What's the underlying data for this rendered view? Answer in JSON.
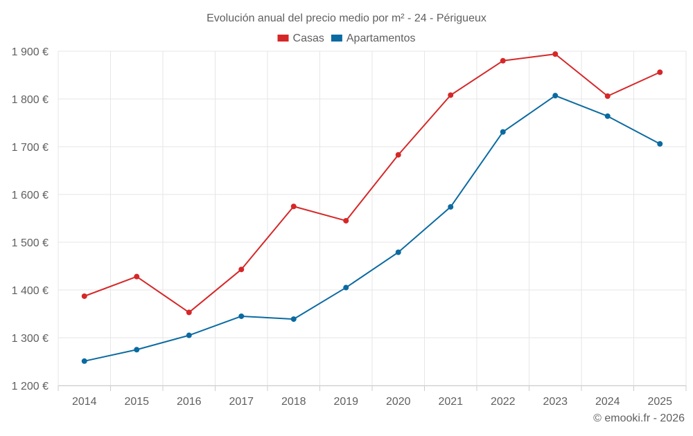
{
  "chart_data": {
    "type": "line",
    "title": "Evolución anual del precio medio por m² - 24 - Périgueux",
    "categories": [
      "2014",
      "2015",
      "2016",
      "2017",
      "2018",
      "2019",
      "2020",
      "2021",
      "2022",
      "2023",
      "2024",
      "2025"
    ],
    "series": [
      {
        "name": "Casas",
        "color": "#d62728",
        "values": [
          1387,
          1428,
          1353,
          1443,
          1575,
          1545,
          1683,
          1808,
          1880,
          1894,
          1806,
          1856
        ]
      },
      {
        "name": "Apartamentos",
        "color": "#0a6aa1",
        "values": [
          1251,
          1275,
          1305,
          1345,
          1339,
          1405,
          1479,
          1574,
          1731,
          1807,
          1764,
          1706
        ]
      }
    ],
    "ylim": [
      1200,
      1900
    ],
    "yticks": [
      1200,
      1300,
      1400,
      1500,
      1600,
      1700,
      1800,
      1900
    ],
    "ytick_labels": [
      "1 200 €",
      "1 300 €",
      "1 400 €",
      "1 500 €",
      "1 600 €",
      "1 700 €",
      "1 800 €",
      "1 900 €"
    ],
    "xlabel": "",
    "ylabel": "",
    "grid": true,
    "legend_position": "top-center"
  },
  "credit": "© emooki.fr - 2026",
  "colors": {
    "text": "#5f5f5f",
    "grid": "#e6e6e6",
    "axis": "#cccccc"
  }
}
